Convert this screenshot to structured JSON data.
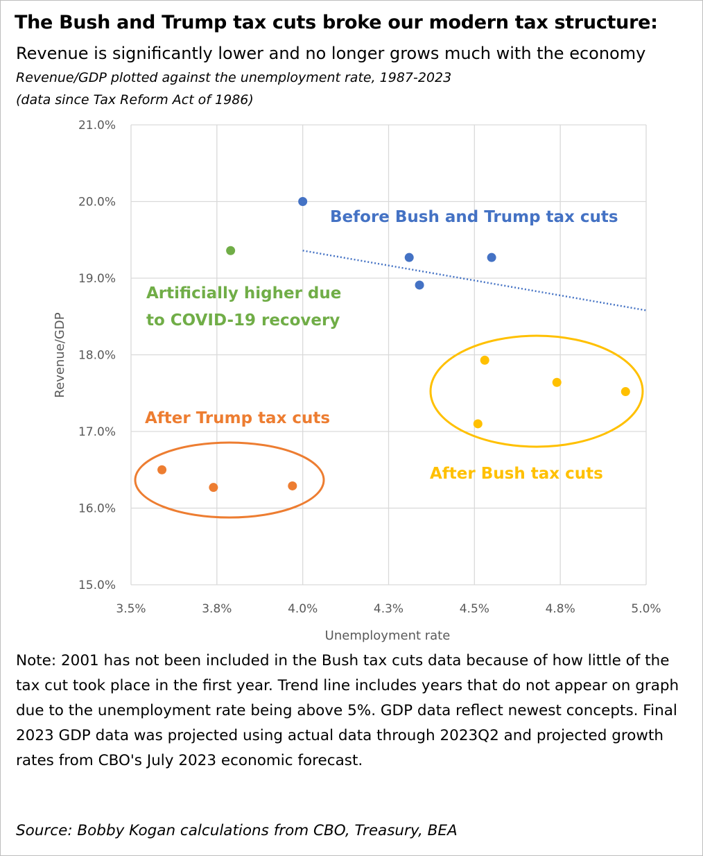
{
  "title": "The Bush and Trump tax cuts broke our modern tax structure:",
  "subtitle": "Revenue is significantly lower and no longer grows much with the economy",
  "subtitle2": "Revenue/GDP plotted against the unemployment rate, 1987-2023",
  "subtitle3": "(data since Tax Reform Act of 1986)",
  "note": "Note: 2001 has not been included in the Bush tax cuts data because of how little of the tax cut took place in the first year. Trend line includes years that do not appear on graph due to the unemployment rate being above 5%. GDP data reflect newest concepts. Final 2023 GDP data was projected using actual data through 2023Q2 and projected growth rates from CBO's July 2023 economic forecast.",
  "source": "Source: Bobby Kogan calculations from CBO, Treasury, BEA",
  "chart_data": {
    "type": "scatter",
    "xlabel": "Unemployment rate",
    "ylabel": "Revenue/GDP",
    "xlim": [
      3.5,
      5.0
    ],
    "ylim": [
      15.0,
      21.0
    ],
    "x_ticks": [
      3.5,
      3.75,
      4.0,
      4.25,
      4.5,
      4.75,
      5.0
    ],
    "x_tick_labels": [
      "3.5%",
      "3.8%",
      "4.0%",
      "4.3%",
      "4.5%",
      "4.8%",
      "5.0%"
    ],
    "y_ticks": [
      15,
      16,
      17,
      18,
      19,
      20,
      21
    ],
    "y_tick_labels": [
      "15.0%",
      "16.0%",
      "17.0%",
      "18.0%",
      "19.0%",
      "20.0%",
      "21.0%"
    ],
    "grid": true,
    "series": [
      {
        "name": "Before Bush and Trump tax cuts",
        "color": "#4472c4",
        "points": [
          [
            4.0,
            20.0
          ],
          [
            4.31,
            19.27
          ],
          [
            4.34,
            18.91
          ],
          [
            4.55,
            19.27
          ]
        ]
      },
      {
        "name": "Artificially higher due to COVID-19 recovery",
        "color": "#70ad47",
        "points": [
          [
            3.79,
            19.36
          ]
        ]
      },
      {
        "name": "After Trump tax cuts",
        "color": "#ed7d31",
        "points": [
          [
            3.59,
            16.5
          ],
          [
            3.74,
            16.27
          ],
          [
            3.97,
            16.29
          ]
        ]
      },
      {
        "name": "After Bush tax cuts",
        "color": "#ffc000",
        "points": [
          [
            4.53,
            17.93
          ],
          [
            4.74,
            17.64
          ],
          [
            4.94,
            17.52
          ],
          [
            4.51,
            17.1
          ]
        ]
      }
    ],
    "trendline": {
      "series": "Before Bush and Trump tax cuts",
      "style": "dotted",
      "color": "#4472c4",
      "from": [
        4.0,
        19.36
      ],
      "to": [
        5.0,
        18.58
      ]
    },
    "annotations": {
      "before": "Before Bush and Trump tax cuts",
      "covid_line1": "Artificially higher due",
      "covid_line2": "to COVID-19 recovery",
      "trump": "After Trump tax cuts",
      "bush": "After Bush tax cuts"
    }
  }
}
